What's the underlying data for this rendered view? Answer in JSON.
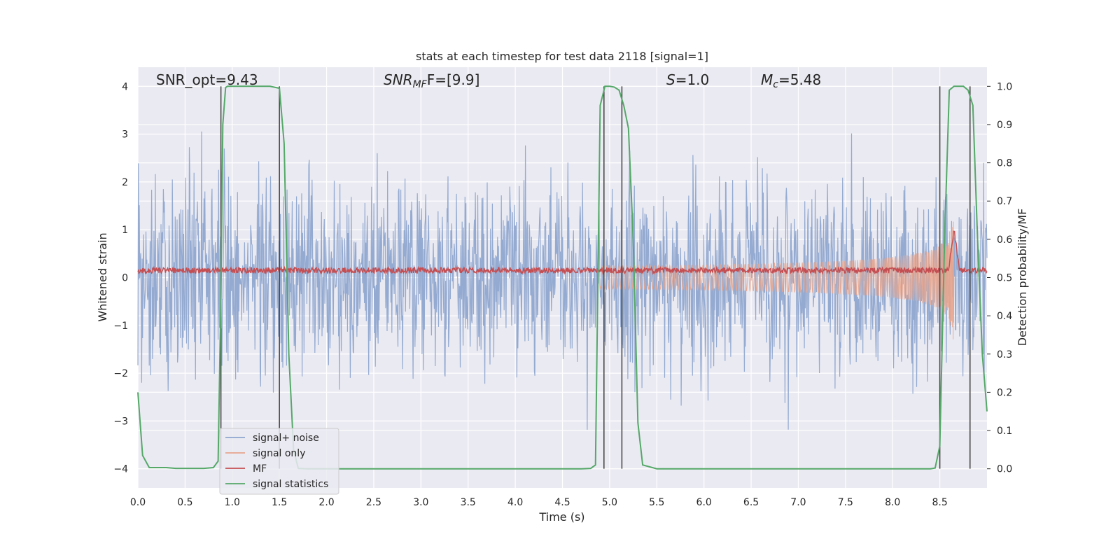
{
  "chart_data": {
    "type": "line",
    "title": "stats at each timestep for test data 2118 [signal=1]",
    "xlabel": "Time (s)",
    "ylabel": "Whitened strain",
    "ylabel_right": "Detection probability/MF",
    "xlim": [
      0,
      9.0
    ],
    "ylim": [
      -4.4,
      4.4
    ],
    "ylim_right": [
      -0.05,
      1.05
    ],
    "x_ticks": [
      0.0,
      0.5,
      1.0,
      1.5,
      2.0,
      2.5,
      3.0,
      3.5,
      4.0,
      4.5,
      5.0,
      5.5,
      6.0,
      6.5,
      7.0,
      7.5,
      8.0,
      8.5
    ],
    "x_tick_labels": [
      "0.0",
      "0.5",
      "1.0",
      "1.5",
      "2.0",
      "2.5",
      "3.0",
      "3.5",
      "4.0",
      "4.5",
      "5.0",
      "5.5",
      "6.0",
      "6.5",
      "7.0",
      "7.5",
      "8.0",
      "8.5"
    ],
    "y_ticks": [
      -4,
      -3,
      -2,
      -1,
      0,
      1,
      2,
      3,
      4
    ],
    "y_tick_labels": [
      "−4",
      "−3",
      "−2",
      "−1",
      "0",
      "1",
      "2",
      "3",
      "4"
    ],
    "y_right_ticks": [
      0.0,
      0.1,
      0.2,
      0.3,
      0.4,
      0.5,
      0.6,
      0.7,
      0.8,
      0.9,
      1.0
    ],
    "y_right_tick_labels": [
      "0.0",
      "0.1",
      "0.2",
      "0.3",
      "0.4",
      "0.5",
      "0.6",
      "0.7",
      "0.8",
      "0.9",
      "1.0"
    ],
    "annotations": {
      "snr_opt": "SNR_opt=9.43",
      "snr_mf_main": "SNR",
      "snr_mf_sub": "MF",
      "snr_mf_tail": "F=[9.9]",
      "s_main": "S",
      "s_tail": "=1.0",
      "mc_main": "M",
      "mc_sub": "c",
      "mc_tail": "=5.48"
    },
    "legend": {
      "location": "lower-left",
      "entries": [
        "signal+ noise",
        "signal only",
        "MF",
        "signal statistics"
      ]
    },
    "colors": {
      "background": "#eaeaf2",
      "grid": "#ffffff",
      "noise": "#8fa6cf",
      "signal_only": "#e8a58d",
      "mf": "#c44e52",
      "statistics": "#55a868",
      "vlines": "#4a4a4a"
    },
    "noise": {
      "sigma": 1.0,
      "n_samples": 1800,
      "seed": 2118
    },
    "signal_only": {
      "t_start": 4.9,
      "t_merger": 8.65,
      "amplitude_end": -1.05
    },
    "mf": {
      "baseline": 0.15,
      "noise_amp": 0.06,
      "peak_time": 8.65,
      "peak_value": 1.0
    },
    "signal_statistics": {
      "x": [
        0.0,
        0.05,
        0.12,
        0.2,
        0.3,
        0.4,
        0.5,
        0.6,
        0.7,
        0.8,
        0.85,
        0.88,
        0.9,
        0.93,
        0.95,
        1.0,
        1.2,
        1.4,
        1.5,
        1.55,
        1.6,
        1.65,
        1.7,
        1.8,
        2.0,
        3.0,
        4.0,
        4.5,
        4.7,
        4.8,
        4.85,
        4.9,
        4.95,
        5.0,
        5.05,
        5.1,
        5.15,
        5.2,
        5.25,
        5.3,
        5.35,
        5.5,
        6.0,
        7.0,
        8.0,
        8.4,
        8.45,
        8.5,
        8.55,
        8.6,
        8.65,
        8.7,
        8.75,
        8.8,
        8.85,
        8.9,
        8.95,
        9.0
      ],
      "y": [
        0.2,
        0.035,
        0.003,
        0.003,
        0.003,
        0.001,
        0.001,
        0.001,
        0.001,
        0.003,
        0.02,
        0.45,
        0.9,
        0.997,
        1.0,
        1.0,
        1.0,
        1.0,
        0.995,
        0.85,
        0.3,
        0.05,
        0.001,
        0.0,
        0.0,
        0.0,
        0.0,
        0.0,
        0.0,
        0.001,
        0.01,
        0.95,
        1.0,
        1.0,
        0.998,
        0.99,
        0.95,
        0.89,
        0.6,
        0.12,
        0.01,
        0.0,
        0.0,
        0.0,
        0.0,
        0.0,
        0.002,
        0.06,
        0.6,
        0.99,
        1.0,
        1.0,
        1.0,
        0.99,
        0.95,
        0.6,
        0.3,
        0.15
      ]
    },
    "vertical_lines": [
      0.88,
      1.5,
      4.94,
      5.13,
      8.5,
      8.82
    ]
  }
}
